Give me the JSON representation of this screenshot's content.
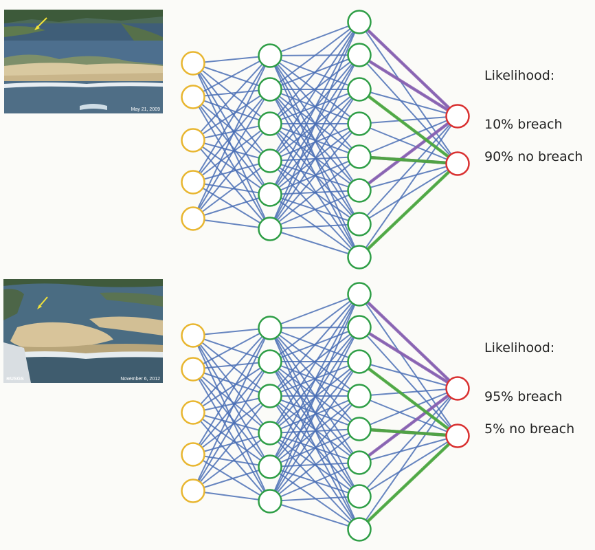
{
  "panels": [
    {
      "photo_date": "May 21, 2009",
      "photo_logo": "",
      "likelihood_heading": "Likelihood:",
      "outputs": [
        "10% breach",
        "90% no breach"
      ]
    },
    {
      "photo_date": "November 6, 2012",
      "photo_logo": "≋USGS",
      "likelihood_heading": "Likelihood:",
      "outputs": [
        "95% breach",
        "5% no breach"
      ]
    }
  ],
  "network": {
    "layer_node_counts": [
      5,
      6,
      8,
      2
    ],
    "colors": {
      "input_node": "#e8b630",
      "hidden_node": "#2e9e46",
      "output_node": "#d93030",
      "edge": "#4a6fb5",
      "edge_highlight_purple": "#8a5fb0",
      "edge_highlight_green": "#4aa83a"
    }
  }
}
